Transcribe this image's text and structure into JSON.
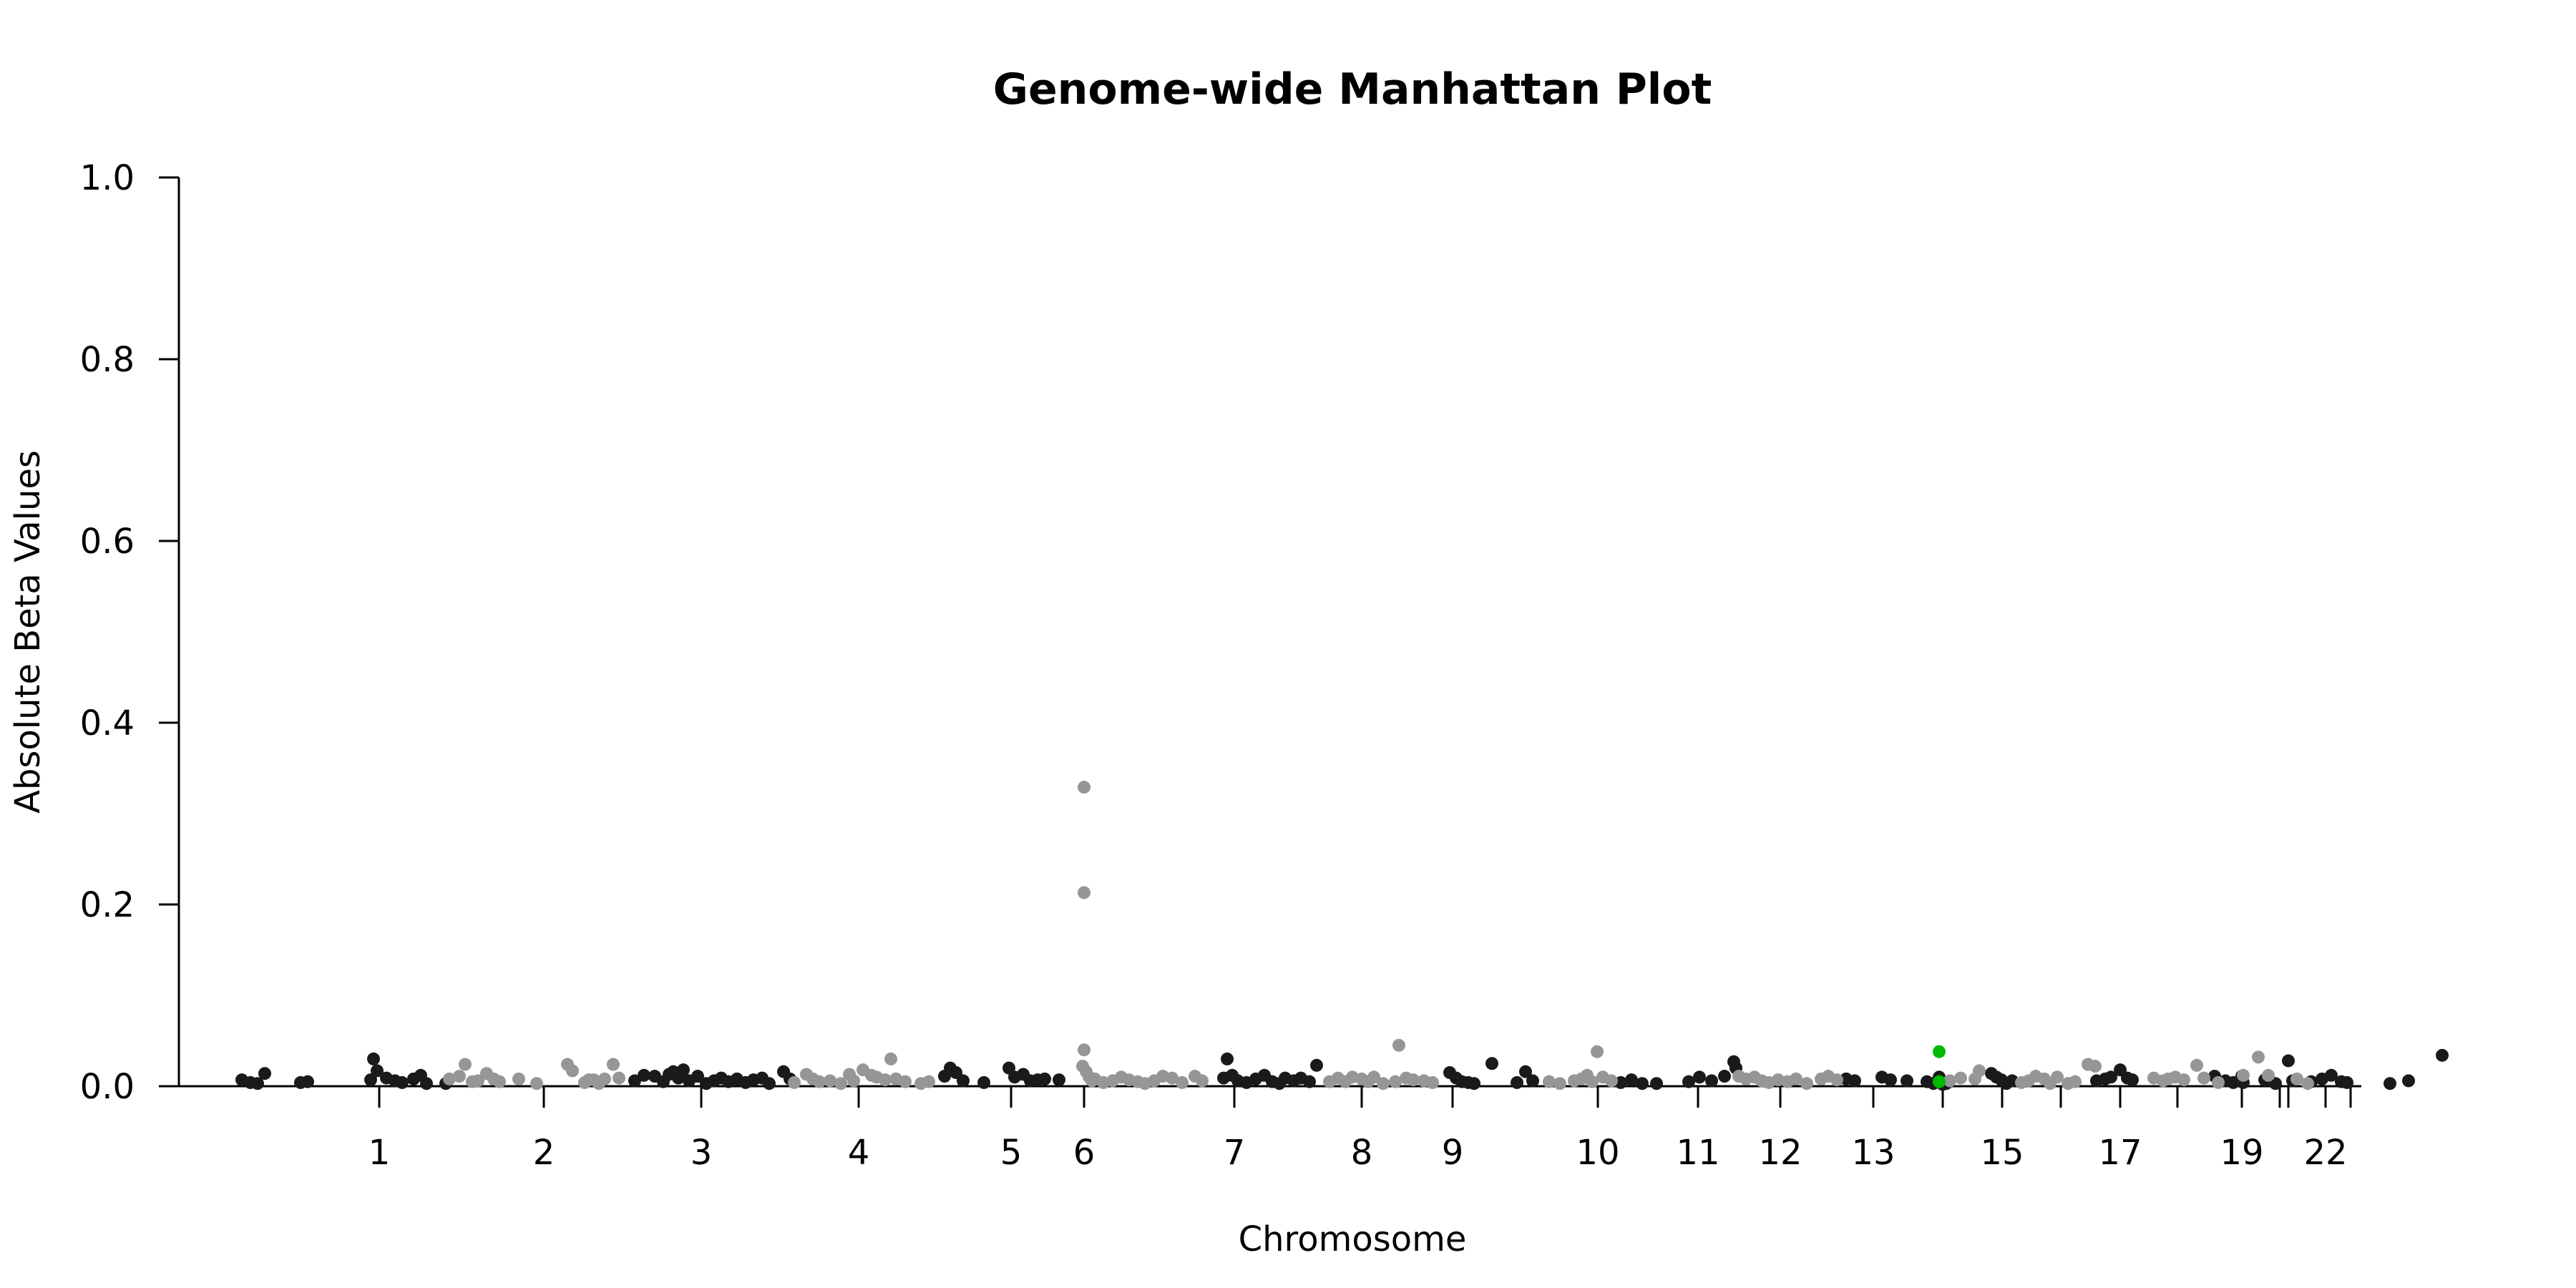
{
  "chart_data": {
    "type": "scatter",
    "title": "Genome-wide Manhattan Plot",
    "xlabel": "Chromosome",
    "ylabel": "Absolute Beta Values",
    "ylim": [
      0,
      1
    ],
    "yticks": [
      "0.0",
      "0.2",
      "0.4",
      "0.6",
      "0.8",
      "1.0"
    ],
    "xlim": [
      0,
      3100
    ],
    "grid": false,
    "chromosome_ticks": [
      {
        "label": "1",
        "x": 200
      },
      {
        "label": "2",
        "x": 430
      },
      {
        "label": "3",
        "x": 650
      },
      {
        "label": "4",
        "x": 870
      },
      {
        "label": "5",
        "x": 1083
      },
      {
        "label": "6",
        "x": 1185
      },
      {
        "label": "7",
        "x": 1395
      },
      {
        "label": "8",
        "x": 1573
      },
      {
        "label": "9",
        "x": 1700
      },
      {
        "label": "10",
        "x": 1903
      },
      {
        "label": "11",
        "x": 2043
      },
      {
        "label": "12",
        "x": 2158
      },
      {
        "label": "13",
        "x": 2288
      },
      {
        "label": "15",
        "x": 2468
      },
      {
        "label": "17",
        "x": 2633
      },
      {
        "label": "19",
        "x": 2803
      },
      {
        "label": "22",
        "x": 2920
      }
    ],
    "extra_axis_ticks": [
      2385,
      2550,
      2713,
      2856,
      2868,
      2955
    ],
    "colors": {
      "dark": "#1a1a1a",
      "light": "#969696",
      "highlight": "#00bb00"
    },
    "series": [
      {
        "color_key": "dark",
        "points": [
          [
            8,
            0.007
          ],
          [
            20,
            0.004
          ],
          [
            30,
            0.003
          ],
          [
            40,
            0.014
          ],
          [
            90,
            0.004
          ],
          [
            100,
            0.005
          ],
          [
            188,
            0.007
          ],
          [
            192,
            0.03
          ],
          [
            197,
            0.017
          ],
          [
            210,
            0.009
          ],
          [
            222,
            0.006
          ],
          [
            232,
            0.004
          ],
          [
            248,
            0.008
          ],
          [
            258,
            0.012
          ],
          [
            266,
            0.003
          ],
          [
            293,
            0.003
          ],
          [
            618,
            0.009
          ],
          [
            625,
            0.018
          ],
          [
            633,
            0.006
          ],
          [
            645,
            0.011
          ],
          [
            657,
            0.003
          ],
          [
            668,
            0.006
          ],
          [
            678,
            0.009
          ],
          [
            688,
            0.005
          ],
          [
            700,
            0.008
          ],
          [
            712,
            0.004
          ],
          [
            723,
            0.007
          ],
          [
            735,
            0.009
          ],
          [
            745,
            0.003
          ],
          [
            557,
            0.006
          ],
          [
            570,
            0.012
          ],
          [
            585,
            0.011
          ],
          [
            597,
            0.005
          ],
          [
            605,
            0.013
          ],
          [
            611,
            0.016
          ],
          [
            765,
            0.016
          ],
          [
            774,
            0.008
          ],
          [
            990,
            0.011
          ],
          [
            998,
            0.02
          ],
          [
            1006,
            0.015
          ],
          [
            1016,
            0.006
          ],
          [
            1045,
            0.004
          ],
          [
            1080,
            0.02
          ],
          [
            1088,
            0.01
          ],
          [
            1100,
            0.013
          ],
          [
            1110,
            0.006
          ],
          [
            1120,
            0.007
          ],
          [
            1130,
            0.008
          ],
          [
            1150,
            0.007
          ],
          [
            1385,
            0.03
          ],
          [
            1380,
            0.009
          ],
          [
            1392,
            0.012
          ],
          [
            1400,
            0.006
          ],
          [
            1412,
            0.004
          ],
          [
            1425,
            0.008
          ],
          [
            1437,
            0.012
          ],
          [
            1448,
            0.005
          ],
          [
            1458,
            0.003
          ],
          [
            1466,
            0.009
          ],
          [
            1478,
            0.006
          ],
          [
            1488,
            0.009
          ],
          [
            1500,
            0.005
          ],
          [
            1510,
            0.023
          ],
          [
            1696,
            0.015
          ],
          [
            1705,
            0.009
          ],
          [
            1713,
            0.005
          ],
          [
            1722,
            0.004
          ],
          [
            1730,
            0.003
          ],
          [
            1755,
            0.025
          ],
          [
            1790,
            0.004
          ],
          [
            1802,
            0.016
          ],
          [
            1812,
            0.006
          ],
          [
            1935,
            0.004
          ],
          [
            1950,
            0.007
          ],
          [
            1965,
            0.003
          ],
          [
            1985,
            0.003
          ],
          [
            2030,
            0.005
          ],
          [
            2045,
            0.01
          ],
          [
            2062,
            0.006
          ],
          [
            2080,
            0.011
          ],
          [
            2093,
            0.027
          ],
          [
            2096,
            0.02
          ],
          [
            2250,
            0.008
          ],
          [
            2262,
            0.006
          ],
          [
            2300,
            0.01
          ],
          [
            2312,
            0.007
          ],
          [
            2335,
            0.006
          ],
          [
            2363,
            0.005
          ],
          [
            2372,
            0.003
          ],
          [
            2380,
            0.01
          ],
          [
            2390,
            0.003
          ],
          [
            2385,
            0.002
          ],
          [
            2453,
            0.014
          ],
          [
            2460,
            0.01
          ],
          [
            2467,
            0.007
          ],
          [
            2474,
            0.003
          ],
          [
            2482,
            0.006
          ],
          [
            2600,
            0.006
          ],
          [
            2612,
            0.008
          ],
          [
            2620,
            0.01
          ],
          [
            2633,
            0.018
          ],
          [
            2643,
            0.009
          ],
          [
            2650,
            0.007
          ],
          [
            2765,
            0.011
          ],
          [
            2780,
            0.006
          ],
          [
            2791,
            0.004
          ],
          [
            2803,
            0.011
          ],
          [
            2805,
            0.004
          ],
          [
            2835,
            0.007
          ],
          [
            2850,
            0.003
          ],
          [
            2868,
            0.028
          ],
          [
            2874,
            0.006
          ],
          [
            2900,
            0.005
          ],
          [
            2915,
            0.008
          ],
          [
            2928,
            0.012
          ],
          [
            2942,
            0.005
          ],
          [
            2950,
            0.004
          ],
          [
            3010,
            0.003
          ],
          [
            3036,
            0.006
          ],
          [
            3083,
            0.034
          ]
        ]
      },
      {
        "color_key": "light",
        "points": [
          [
            298,
            0.008
          ],
          [
            312,
            0.011
          ],
          [
            320,
            0.024
          ],
          [
            330,
            0.005
          ],
          [
            338,
            0.006
          ],
          [
            350,
            0.014
          ],
          [
            360,
            0.008
          ],
          [
            368,
            0.005
          ],
          [
            395,
            0.008
          ],
          [
            420,
            0.003
          ],
          [
            463,
            0.024
          ],
          [
            470,
            0.017
          ],
          [
            487,
            0.004
          ],
          [
            493,
            0.007
          ],
          [
            500,
            0.007
          ],
          [
            507,
            0.003
          ],
          [
            515,
            0.008
          ],
          [
            527,
            0.024
          ],
          [
            535,
            0.009
          ],
          [
            780,
            0.004
          ],
          [
            797,
            0.013
          ],
          [
            806,
            0.008
          ],
          [
            815,
            0.005
          ],
          [
            830,
            0.006
          ],
          [
            845,
            0.003
          ],
          [
            857,
            0.013
          ],
          [
            863,
            0.006
          ],
          [
            876,
            0.018
          ],
          [
            888,
            0.012
          ],
          [
            895,
            0.01
          ],
          [
            907,
            0.007
          ],
          [
            915,
            0.03
          ],
          [
            922,
            0.008
          ],
          [
            935,
            0.005
          ],
          [
            957,
            0.003
          ],
          [
            968,
            0.005
          ],
          [
            1185,
            0.329
          ],
          [
            1185,
            0.213
          ],
          [
            1185,
            0.04
          ],
          [
            1183,
            0.022
          ],
          [
            1188,
            0.016
          ],
          [
            1192,
            0.01
          ],
          [
            1196,
            0.006
          ],
          [
            1200,
            0.008
          ],
          [
            1212,
            0.004
          ],
          [
            1225,
            0.006
          ],
          [
            1237,
            0.01
          ],
          [
            1248,
            0.007
          ],
          [
            1260,
            0.005
          ],
          [
            1270,
            0.003
          ],
          [
            1283,
            0.006
          ],
          [
            1295,
            0.011
          ],
          [
            1308,
            0.009
          ],
          [
            1322,
            0.004
          ],
          [
            1340,
            0.011
          ],
          [
            1350,
            0.006
          ],
          [
            1528,
            0.005
          ],
          [
            1540,
            0.009
          ],
          [
            1550,
            0.005
          ],
          [
            1560,
            0.01
          ],
          [
            1573,
            0.008
          ],
          [
            1582,
            0.005
          ],
          [
            1590,
            0.01
          ],
          [
            1603,
            0.003
          ],
          [
            1620,
            0.005
          ],
          [
            1625,
            0.045
          ],
          [
            1635,
            0.009
          ],
          [
            1645,
            0.007
          ],
          [
            1660,
            0.006
          ],
          [
            1672,
            0.004
          ],
          [
            1835,
            0.005
          ],
          [
            1850,
            0.003
          ],
          [
            1870,
            0.006
          ],
          [
            1880,
            0.008
          ],
          [
            1888,
            0.012
          ],
          [
            1895,
            0.005
          ],
          [
            1902,
            0.038
          ],
          [
            1910,
            0.01
          ],
          [
            1922,
            0.006
          ],
          [
            2100,
            0.011
          ],
          [
            2110,
            0.008
          ],
          [
            2122,
            0.01
          ],
          [
            2132,
            0.006
          ],
          [
            2142,
            0.004
          ],
          [
            2155,
            0.007
          ],
          [
            2168,
            0.005
          ],
          [
            2180,
            0.008
          ],
          [
            2195,
            0.003
          ],
          [
            2215,
            0.008
          ],
          [
            2225,
            0.011
          ],
          [
            2237,
            0.007
          ],
          [
            2395,
            0.006
          ],
          [
            2410,
            0.009
          ],
          [
            2430,
            0.008
          ],
          [
            2436,
            0.017
          ],
          [
            2495,
            0.004
          ],
          [
            2505,
            0.006
          ],
          [
            2515,
            0.011
          ],
          [
            2527,
            0.008
          ],
          [
            2535,
            0.003
          ],
          [
            2545,
            0.01
          ],
          [
            2560,
            0.003
          ],
          [
            2570,
            0.005
          ],
          [
            2588,
            0.024
          ],
          [
            2598,
            0.022
          ],
          [
            2680,
            0.009
          ],
          [
            2693,
            0.006
          ],
          [
            2700,
            0.008
          ],
          [
            2710,
            0.01
          ],
          [
            2722,
            0.007
          ],
          [
            2740,
            0.023
          ],
          [
            2750,
            0.009
          ],
          [
            2770,
            0.004
          ],
          [
            2805,
            0.012
          ],
          [
            2826,
            0.032
          ],
          [
            2840,
            0.012
          ],
          [
            2880,
            0.008
          ],
          [
            2895,
            0.003
          ]
        ]
      },
      {
        "color_key": "highlight",
        "points": [
          [
            2380,
            0.038
          ],
          [
            2380,
            0.005
          ]
        ]
      }
    ]
  }
}
